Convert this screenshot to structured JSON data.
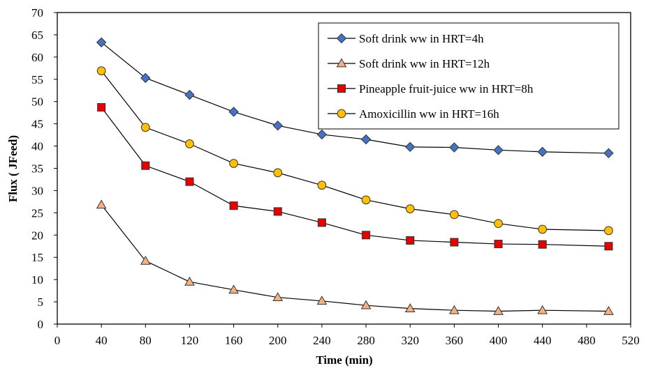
{
  "chart_data": {
    "type": "line",
    "xlabel": "Time (min)",
    "ylabel": "Flux ( JFeed)",
    "xlim": [
      0,
      520
    ],
    "ylim": [
      0,
      70
    ],
    "xticks": [
      0,
      40,
      80,
      120,
      160,
      200,
      240,
      280,
      320,
      360,
      400,
      440,
      480,
      520
    ],
    "yticks": [
      0,
      5,
      10,
      15,
      20,
      25,
      30,
      35,
      40,
      45,
      50,
      55,
      60,
      65,
      70
    ],
    "grid": false,
    "legend_position": "top-right",
    "x": [
      40,
      80,
      120,
      160,
      200,
      240,
      280,
      320,
      360,
      400,
      440,
      500
    ],
    "series": [
      {
        "name": "Soft drink ww in HRT=4h",
        "marker": "diamond",
        "color": "#4472c4",
        "values": [
          63.3,
          55.3,
          51.5,
          47.7,
          44.6,
          42.6,
          41.5,
          39.8,
          39.7,
          39.1,
          38.7,
          38.4
        ]
      },
      {
        "name": "Soft drink ww in HRT=12h",
        "marker": "triangle",
        "color": "#f4b183",
        "values": [
          26.8,
          14.2,
          9.5,
          7.7,
          6.0,
          5.2,
          4.2,
          3.5,
          3.1,
          2.9,
          3.1,
          2.9
        ]
      },
      {
        "name": "Pineapple fruit-juice ww in HRT=8h",
        "marker": "square",
        "color": "#e60000",
        "values": [
          48.7,
          35.6,
          32.0,
          26.6,
          25.3,
          22.8,
          20.0,
          18.8,
          18.4,
          18.0,
          17.9,
          17.5
        ]
      },
      {
        "name": "Amoxicillin ww in HRT=16h",
        "marker": "circle",
        "color": "#ffc000",
        "values": [
          56.9,
          44.2,
          40.5,
          36.1,
          34.0,
          31.2,
          27.9,
          25.9,
          24.6,
          22.6,
          21.3,
          21.0
        ]
      }
    ]
  }
}
